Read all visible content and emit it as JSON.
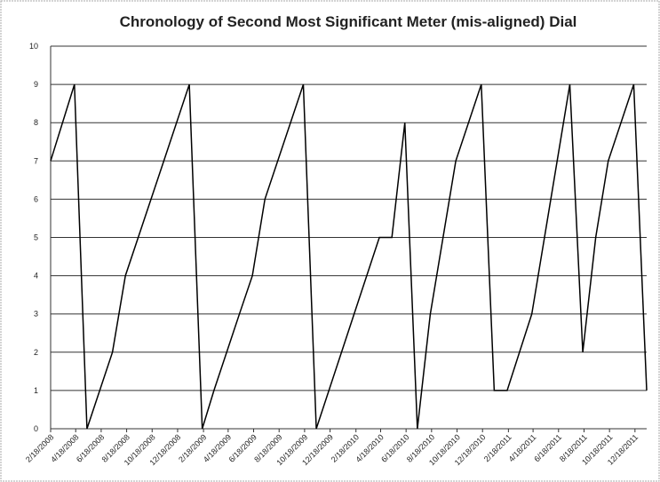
{
  "chart_data": {
    "type": "line",
    "title": "Chronology of Second Most Significant Meter (mis-aligned) Dial",
    "x": [
      "2/18/2008",
      "4/15/2008",
      "5/15/2008",
      "7/15/2008",
      "8/15/2008",
      "11/15/2008",
      "1/15/2009",
      "2/15/2009",
      "3/15/2009",
      "5/15/2009",
      "6/15/2009",
      "7/15/2009",
      "10/15/2009",
      "11/15/2009",
      "4/15/2010",
      "5/15/2010",
      "6/15/2010",
      "7/15/2010",
      "8/15/2010",
      "10/15/2010",
      "12/15/2010",
      "1/15/2011",
      "2/15/2011",
      "4/15/2011",
      "7/15/2011",
      "8/15/2011",
      "9/15/2011",
      "10/15/2011",
      "12/15/2011",
      "1/15/2012"
    ],
    "series": [
      {
        "color": "#000000",
        "values": [
          7,
          9,
          0,
          2,
          4,
          7,
          9,
          0,
          1,
          3,
          4,
          6,
          9,
          0,
          5,
          5,
          8,
          0,
          3,
          7,
          9,
          1,
          1,
          3,
          9,
          2,
          5,
          7,
          9,
          1
        ]
      }
    ],
    "xlim": [
      "2/18/2008",
      "1/15/2012"
    ],
    "xticks": [
      "2/18/2008",
      "4/18/2008",
      "6/18/2008",
      "8/18/2008",
      "10/18/2008",
      "12/18/2008",
      "2/18/2009",
      "4/18/2009",
      "6/18/2009",
      "8/18/2009",
      "10/18/2009",
      "12/18/2009",
      "2/18/2010",
      "4/18/2010",
      "6/18/2010",
      "8/18/2010",
      "10/18/2010",
      "12/18/2010",
      "2/18/2011",
      "4/18/2011",
      "6/18/2011",
      "8/18/2011",
      "10/18/2011",
      "12/18/2011"
    ],
    "ylim": [
      0,
      10
    ],
    "yticks": [
      0,
      1,
      2,
      3,
      4,
      5,
      6,
      7,
      8,
      9,
      10
    ],
    "grid": true
  }
}
